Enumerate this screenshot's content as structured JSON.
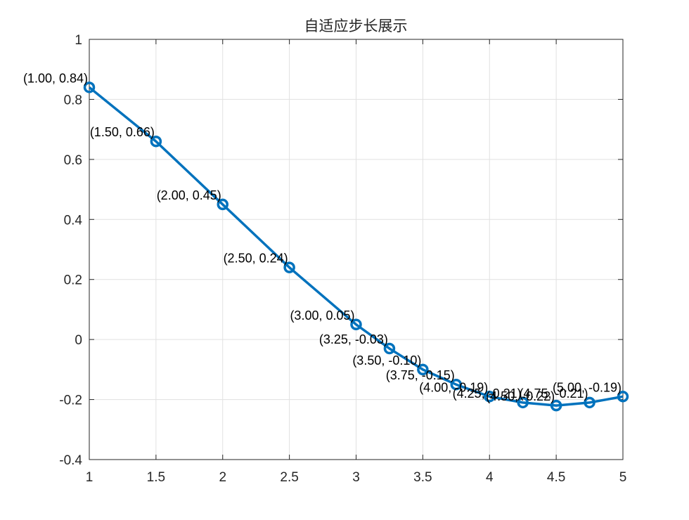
{
  "chart_data": {
    "type": "line",
    "title": "自适应步长展示",
    "xlabel": "",
    "ylabel": "",
    "xlim": [
      1,
      5
    ],
    "ylim": [
      -0.4,
      1
    ],
    "xticks": [
      "1",
      "1.5",
      "2",
      "2.5",
      "3",
      "3.5",
      "4",
      "4.5",
      "5"
    ],
    "yticks": [
      "-0.4",
      "-0.2",
      "0",
      "0.2",
      "0.4",
      "0.6",
      "0.8",
      "1"
    ],
    "grid": true,
    "series": [
      {
        "color": "#0072BD",
        "marker": "circle",
        "x": [
          1.0,
          1.5,
          2.0,
          2.5,
          3.0,
          3.25,
          3.5,
          3.75,
          4.0,
          4.25,
          4.5,
          4.75,
          5.0
        ],
        "y": [
          0.84,
          0.66,
          0.45,
          0.24,
          0.05,
          -0.03,
          -0.1,
          -0.15,
          -0.19,
          -0.21,
          -0.22,
          -0.21,
          -0.19
        ]
      }
    ],
    "annotations": [
      "(1.00, 0.84)",
      "(1.50, 0.66)",
      "(2.00, 0.45)",
      "(2.50, 0.24)",
      "(3.00, 0.05)",
      "(3.25, -0.03)",
      "(3.50, -0.10)",
      "(3.75, -0.15)",
      "(4.00, -0.19)",
      "(4.25, -0.21)",
      "(4.50, -0.22)",
      "(4.75, -0.21)",
      "(5.00, -0.19)"
    ]
  }
}
